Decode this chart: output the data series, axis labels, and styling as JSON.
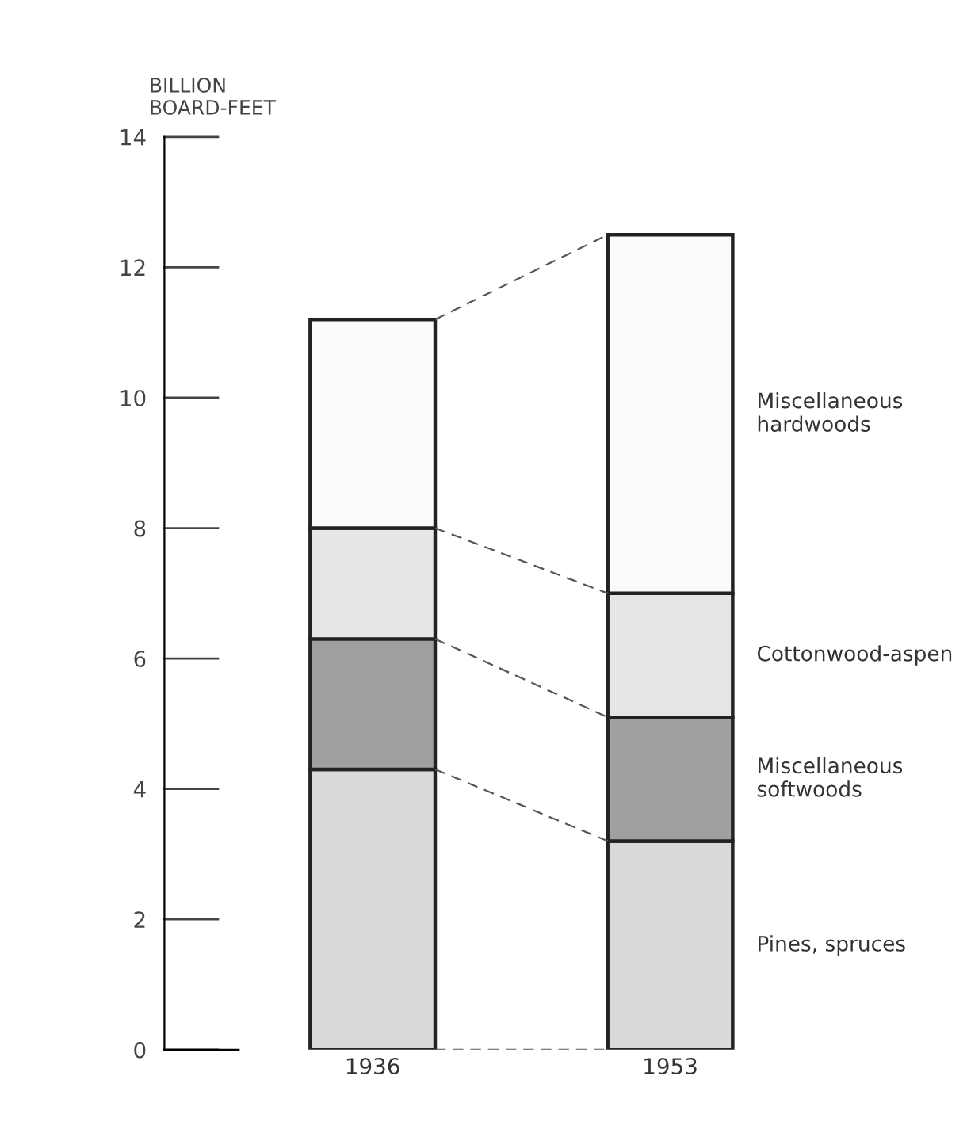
{
  "chart_data": {
    "type": "bar",
    "stacked": true,
    "ylabel": "BILLION\nBOARD-FEET",
    "categories": [
      "1936",
      "1953"
    ],
    "series": [
      {
        "name": "Pines, spruces",
        "color": "#d9d9d9",
        "values": [
          4.3,
          3.2
        ]
      },
      {
        "name": "Miscellaneous softwoods",
        "color": "#a0a0a0",
        "values": [
          2.0,
          1.9
        ]
      },
      {
        "name": "Cottonwood-aspen",
        "color": "#e6e6e6",
        "values": [
          1.7,
          1.9
        ]
      },
      {
        "name": "Miscellaneous hardwoods",
        "color": "#fbfbfb",
        "values": [
          3.2,
          5.5
        ]
      }
    ],
    "ylim": [
      0,
      14
    ],
    "yticks": [
      0,
      2,
      4,
      6,
      8,
      10,
      12,
      14
    ],
    "grid": false
  }
}
